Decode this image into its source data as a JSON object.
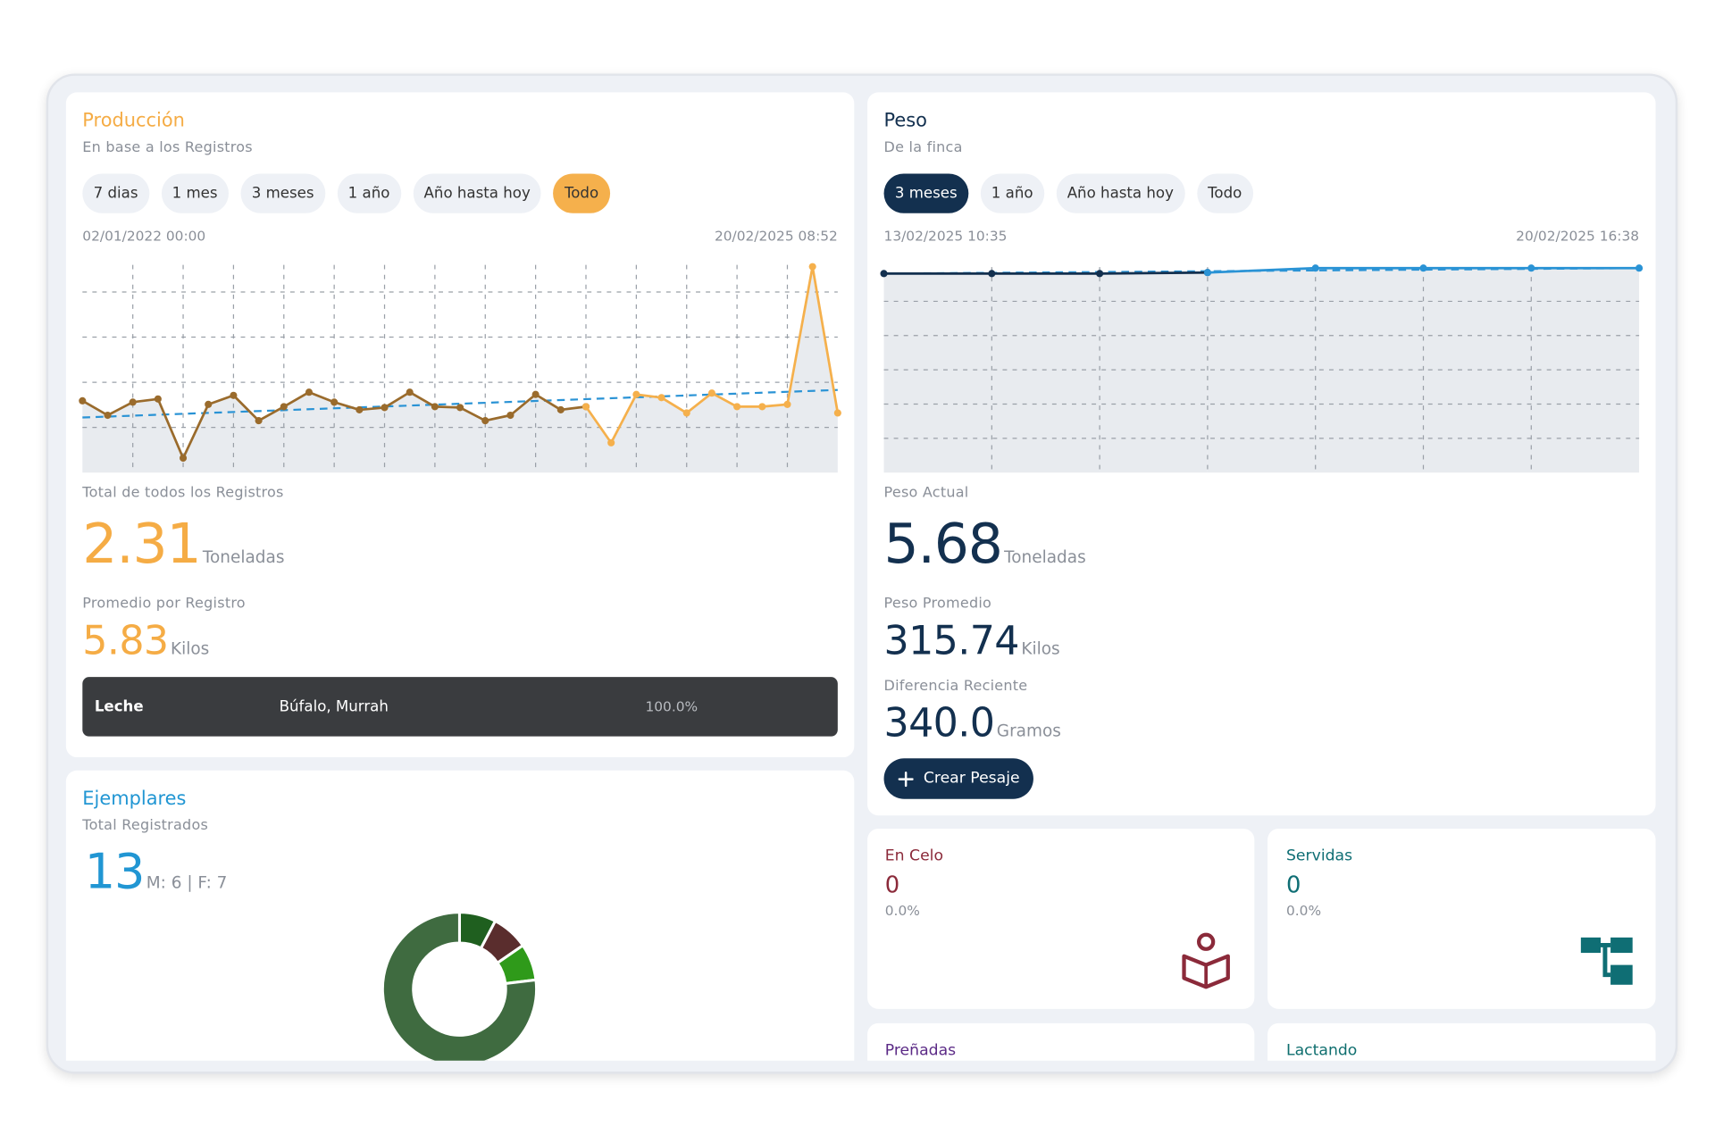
{
  "production": {
    "title": "Producción",
    "subtitle": "En base a los Registros",
    "filters": [
      "7 dias",
      "1 mes",
      "3 meses",
      "1 año",
      "Año hasta hoy",
      "Todo"
    ],
    "active_filter": 5,
    "range_start": "02/01/2022 00:00",
    "range_end": "20/02/2025 08:52",
    "total_label": "Total de todos los Registros",
    "total_value": "2.31",
    "total_unit": "Toneladas",
    "average_label": "Promedio por Registro",
    "average_value": "5.83",
    "average_unit": "Kilos",
    "breakdown": [
      "Leche",
      "Búfalo, Murrah",
      "100.0%"
    ]
  },
  "weight": {
    "title": "Peso",
    "subtitle": "De la finca",
    "filters": [
      "3 meses",
      "1 año",
      "Año hasta hoy",
      "Todo"
    ],
    "active_filter": 0,
    "range_start": "13/02/2025 10:35",
    "range_end": "20/02/2025 16:38",
    "current_label": "Peso Actual",
    "current_value": "5.68",
    "current_unit": "Toneladas",
    "average_label": "Peso Promedio",
    "average_value": "315.74",
    "average_unit": "Kilos",
    "difference_label": "Diferencia Reciente",
    "difference_value": "340.0",
    "difference_unit": "Gramos",
    "button": "Crear Pesaje"
  },
  "animals": {
    "title": "Ejemplares",
    "subtitle": "Total Registrados",
    "total": "13",
    "split": "M: 6 | F: 7"
  },
  "stats": [
    {
      "label": "En Celo",
      "value": "0",
      "percent": "0.0%"
    },
    {
      "label": "Servidas",
      "value": "0",
      "percent": "0.0%"
    },
    {
      "label": "Preñadas"
    },
    {
      "label": "Lactando"
    }
  ],
  "chart_data": [
    {
      "type": "line",
      "xlim": [
        0,
        30
      ],
      "xticks": [
        2,
        4,
        6,
        8,
        10,
        12,
        14,
        16,
        18,
        20,
        22,
        24,
        26,
        28
      ],
      "ylim": [
        0,
        46
      ],
      "yticks": [
        10,
        20,
        30,
        40
      ],
      "grid": true,
      "series": [
        {
          "color": "#9a6b2c",
          "values": [
            15.9,
            12.7,
            15.6,
            16.3,
            3.2,
            15.1,
            17.1,
            11.5,
            14.6,
            17.8,
            15.6,
            13.9,
            14.4,
            17.8,
            14.6,
            14.4,
            11.5,
            12.7,
            17.3,
            13.9,
            14.6,
            null,
            null,
            null,
            null,
            null,
            null,
            null,
            null,
            null,
            null
          ]
        },
        {
          "color": "#f5b04c",
          "values": [
            null,
            null,
            null,
            null,
            null,
            null,
            null,
            null,
            null,
            null,
            null,
            null,
            null,
            null,
            null,
            null,
            null,
            null,
            null,
            null,
            14.6,
            6.6,
            17.3,
            16.6,
            13.2,
            17.6,
            14.6,
            14.6,
            15.1,
            45.6,
            13.2
          ]
        }
      ],
      "trend": [
        12.2,
        18.3
      ],
      "trend_color": "#2a93d5"
    },
    {
      "type": "line",
      "xlim": [
        0,
        7
      ],
      "xticks": [
        1,
        2,
        3,
        4,
        5,
        6
      ],
      "ylim": [
        0,
        6
      ],
      "yticks": [
        1,
        2,
        3,
        4,
        5
      ],
      "grid": true,
      "series": [
        {
          "color": "#13304f",
          "values": [
            5.81,
            5.81,
            5.81,
            5.84,
            null,
            null,
            null,
            null
          ]
        },
        {
          "color": "#2a93d5",
          "values": [
            null,
            null,
            null,
            5.84,
            5.97,
            5.97,
            5.97,
            5.97
          ]
        }
      ],
      "trend": [
        5.81,
        5.97
      ],
      "trend_color": "#2a93d5"
    },
    {
      "type": "donut",
      "values": [
        1,
        1,
        1,
        10
      ],
      "colors": [
        "#1f5f1f",
        "#5a2d2d",
        "#2f9a1a",
        "#3f6b40"
      ]
    }
  ]
}
